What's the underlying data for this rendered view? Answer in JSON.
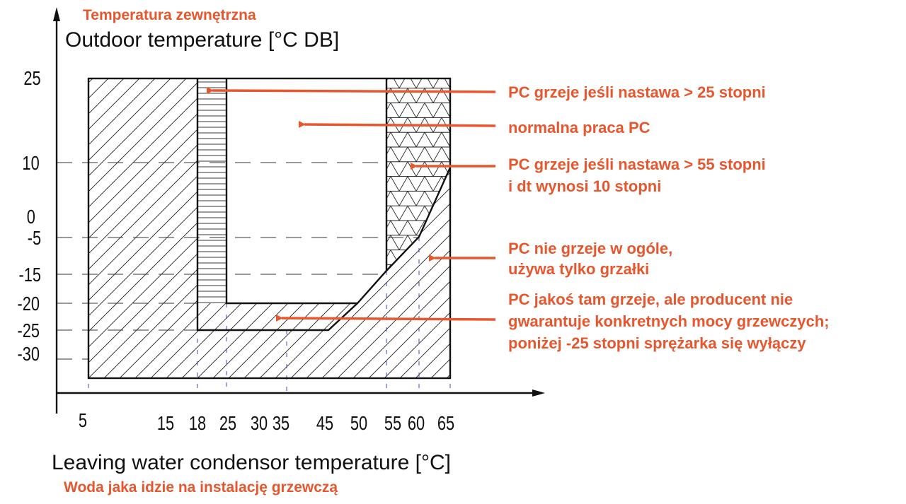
{
  "chart_data": {
    "type": "diagram",
    "y_title_pl": "Temperatura zewnętrzna",
    "y_title_en": "Outdoor temperature [°C DB]",
    "x_title_en": "Leaving water condensor temperature [°C]",
    "x_title_pl": "Woda jaka idzie na instalację grzewczą",
    "x_ticks": [
      "5",
      "15",
      "18",
      "25",
      "30",
      "35",
      "45",
      "50",
      "55",
      "60",
      "65"
    ],
    "y_ticks": [
      "25",
      "10",
      "0",
      "-5",
      "-15",
      "-20",
      "-25",
      "-30"
    ],
    "regions": [
      {
        "name": "PC grzeje jeśli nastawa > 25 stopni",
        "pattern": "horizontal-lines"
      },
      {
        "name": "normalna praca PC",
        "pattern": "none"
      },
      {
        "name": "PC grzeje jeśli nastawa > 55 stopni i dt wynosi 10 stopni",
        "pattern": "triangle-mesh"
      },
      {
        "name": "PC nie grzeje w ogóle, używa tylko grzałki",
        "pattern": "diagonal-hatch"
      },
      {
        "name": "PC jakoś tam grzeje, ale producent nie gwarantuje konkretnych mocy grzewczych; poniżej -25 stopni sprężarka się wyłączy",
        "pattern": "diagonal-hatch"
      }
    ],
    "annotations": [
      {
        "lines": [
          "PC grzeje jeśli nastawa > 25 stopni"
        ]
      },
      {
        "lines": [
          "normalna praca PC"
        ]
      },
      {
        "lines": [
          "PC grzeje jeśli nastawa > 55 stopni",
          "i dt wynosi 10 stopni"
        ]
      },
      {
        "lines": [
          "PC nie grzeje w ogóle,",
          "używa tylko grzałki"
        ]
      },
      {
        "lines": [
          "PC jakoś tam  grzeje, ale producent nie",
          "gwarantuje konkretnych mocy grzewczych;",
          "poniżej -25 stopni sprężarka się wyłączy"
        ]
      }
    ],
    "colors": {
      "annotation": "#e8562e",
      "line": "#111111",
      "guide": "#3a4bbd"
    }
  }
}
